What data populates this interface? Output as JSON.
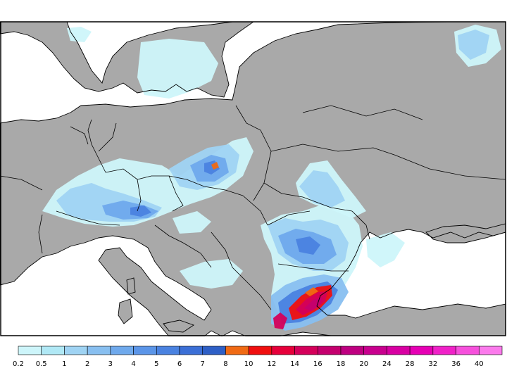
{
  "map": {
    "type": "precipitation-map",
    "region": "Europe",
    "colors": {
      "land": "#a9a9a9",
      "sea": "#ffffff",
      "frame": "#000000",
      "border": "#000000"
    }
  },
  "legend": {
    "labels": [
      "0.2",
      "0.5",
      "1",
      "2",
      "3",
      "4",
      "5",
      "6",
      "7",
      "8",
      "10",
      "12",
      "14",
      "16",
      "18",
      "20",
      "24",
      "28",
      "32",
      "36",
      "40"
    ],
    "colors": [
      "#cdf5fa",
      "#b0e8f5",
      "#9fd3f3",
      "#88bff0",
      "#6fa9ec",
      "#5b95e8",
      "#4a82e0",
      "#3b6fd6",
      "#2e5fc6",
      "#f06a14",
      "#f00f0f",
      "#e6003a",
      "#d4005a",
      "#c4006e",
      "#be0080",
      "#c8008e",
      "#d800a2",
      "#e600b4",
      "#f021c8",
      "#f650dc",
      "#fb7aec"
    ]
  }
}
